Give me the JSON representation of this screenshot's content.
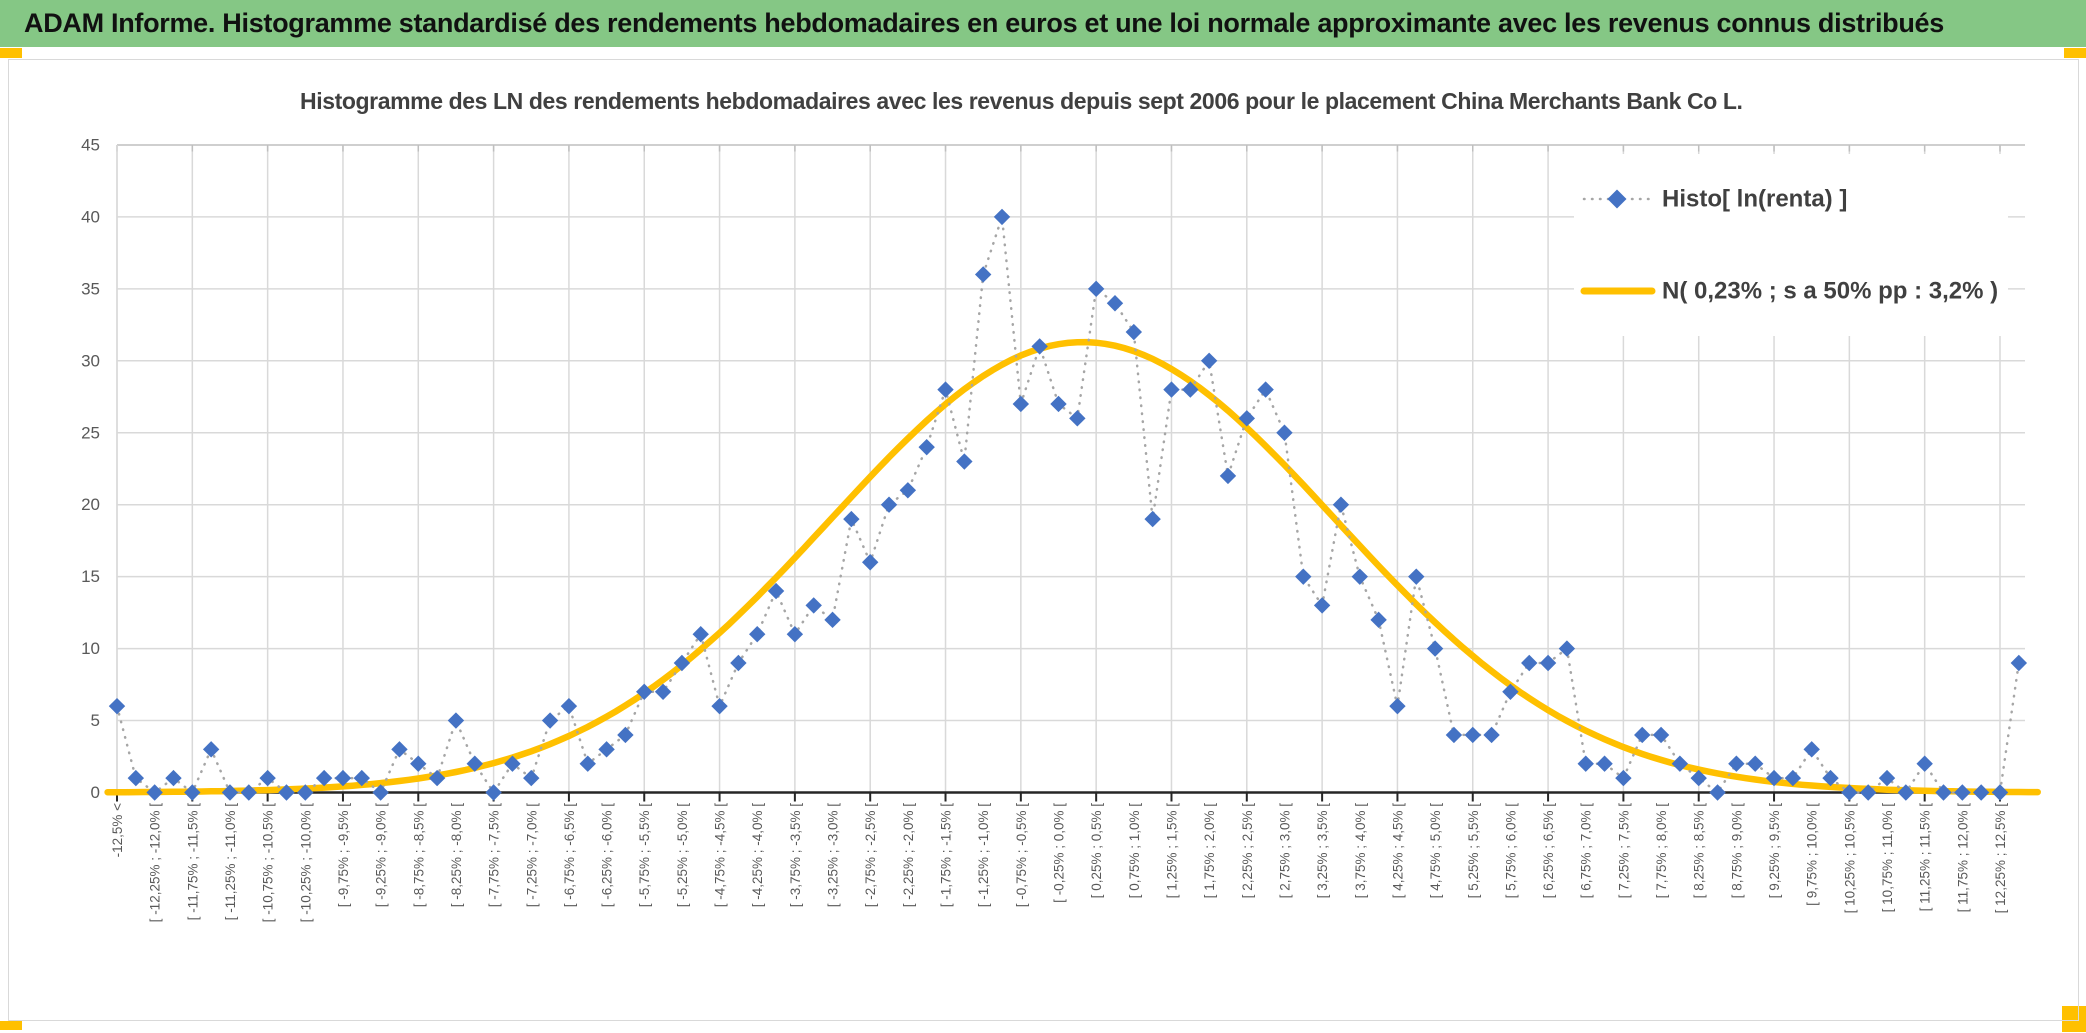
{
  "header": {
    "title": "ADAM Informe. Histogramme standardisé des rendements hebdomadaires en euros et une loi normale approximante avec les revenus connus distribués"
  },
  "chart": {
    "title": "Histogramme des LN des rendements hebdomadaires avec les revenus depuis sept 2006 pour le placement China Merchants Bank Co L."
  },
  "legend": {
    "items": [
      {
        "label": "Histo[ ln(renta) ]",
        "marker": "blue-diamond-dotted"
      },
      {
        "label": "N( 0,23% ; s a 50% pp : 3,2% )",
        "marker": "orange-line"
      }
    ]
  },
  "chart_data": {
    "type": "line",
    "title": "Histogramme des LN des rendements hebdomadaires avec les revenus depuis sept 2006 pour le placement China Merchants Bank Co L.",
    "ylim": [
      0,
      45
    ],
    "y_ticks": [
      0,
      5,
      10,
      15,
      20,
      25,
      30,
      35,
      40,
      45
    ],
    "grid": true,
    "legend_position": "top-right",
    "bin_count": 102,
    "x_labels_shown_every_n_bins": 2,
    "x_labels_shown": [
      "-12,5% <",
      "[ -12,25% ; -12,0% [",
      "[ -11,75% ; -11,5% [",
      "[ -11,25% ; -11,0% [",
      "[ -10,75% ; -10,5% [",
      "[ -10,25% ; -10,0% [",
      "[ -9,75% ; -9,5% [",
      "[ -9,25% ; -9,0% [",
      "[ -8,75% ; -8,5% [",
      "[ -8,25% ; -8,0% [",
      "[ -7,75% ; -7,5% [",
      "[ -7,25% ; -7,0% [",
      "[ -6,75% ; -6,5% [",
      "[ -6,25% ; -6,0% [",
      "[ -5,75% ; -5,5% [",
      "[ -5,25% ; -5,0% [",
      "[ -4,75% ; -4,5% [",
      "[ -4,25% ; -4,0% [",
      "[ -3,75% ; -3,5% [",
      "[ -3,25% ; -3,0% [",
      "[ -2,75% ; -2,5% [",
      "[ -2,25% ; -2,0% [",
      "[ -1,75% ; -1,5% [",
      "[ -1,25% ; -1,0% [",
      "[ -0,75% ; -0,5% [",
      "[ -0,25% ; 0,0% [",
      "[ 0,25% ; 0,5% [",
      "[ 0,75% ; 1,0% [",
      "[ 1,25% ; 1,5% [",
      "[ 1,75% ; 2,0% [",
      "[ 2,25% ; 2,5% [",
      "[ 2,75% ; 3,0% [",
      "[ 3,25% ; 3,5% [",
      "[ 3,75% ; 4,0% [",
      "[ 4,25% ; 4,5% [",
      "[ 4,75% ; 5,0% [",
      "[ 5,25% ; 5,5% [",
      "[ 5,75% ; 6,0% [",
      "[ 6,25% ; 6,5% [",
      "[ 6,75% ; 7,0% [",
      "[ 7,25% ; 7,5% [",
      "[ 7,75% ; 8,0% [",
      "[ 8,25% ; 8,5% [",
      "[ 8,75% ; 9,0% [",
      "[ 9,25% ; 9,5% [",
      "[ 9,75% ; 10,0% [",
      "[ 10,25% ; 10,5% [",
      "[ 10,75% ; 11,0% [",
      "[ 11,25% ; 11,5% [",
      "[ 11,75% ; 12,0% [",
      "[ 12,25% ; 12,5% ["
    ],
    "series": [
      {
        "name": "Histo[ ln(renta) ]",
        "type": "line-with-diamond-markers",
        "marker_color": "#4472C4",
        "connector_color": "#A6A6A6",
        "connector_style": "dotted",
        "values": [
          6,
          1,
          0,
          1,
          0,
          3,
          0,
          0,
          1,
          0,
          0,
          1,
          1,
          1,
          0,
          3,
          2,
          1,
          5,
          2,
          0,
          2,
          1,
          5,
          6,
          2,
          3,
          4,
          7,
          7,
          9,
          11,
          6,
          9,
          11,
          14,
          11,
          13,
          12,
          19,
          16,
          20,
          21,
          24,
          28,
          23,
          36,
          40,
          27,
          31,
          27,
          26,
          35,
          34,
          32,
          19,
          28,
          28,
          30,
          22,
          26,
          28,
          25,
          15,
          13,
          20,
          15,
          12,
          6,
          15,
          10,
          4,
          4,
          4,
          7,
          9,
          9,
          10,
          2,
          2,
          1,
          4,
          4,
          2,
          1,
          0,
          2,
          2,
          1,
          1,
          3,
          1,
          0,
          0,
          1,
          0,
          2,
          0,
          0,
          0,
          0,
          9
        ]
      },
      {
        "name": "N( 0,23% ; s a 50% pp : 3,2% )",
        "type": "normal-curve",
        "color": "#FFC000",
        "mean_label": "0,23%",
        "sd_label": "3,2%",
        "peak_value": 31.3,
        "peak_bin": 51.3,
        "sigma_in_bins": 13.4
      }
    ]
  },
  "colors": {
    "header_green": "#85C785",
    "accent_orange": "#FFC000",
    "diamond_blue": "#4472C4",
    "curve_orange": "#FFC000",
    "gridline_gray": "#D9D9D9",
    "axis_black": "#262626",
    "label_gray": "#595959",
    "title_gray": "#404040"
  }
}
